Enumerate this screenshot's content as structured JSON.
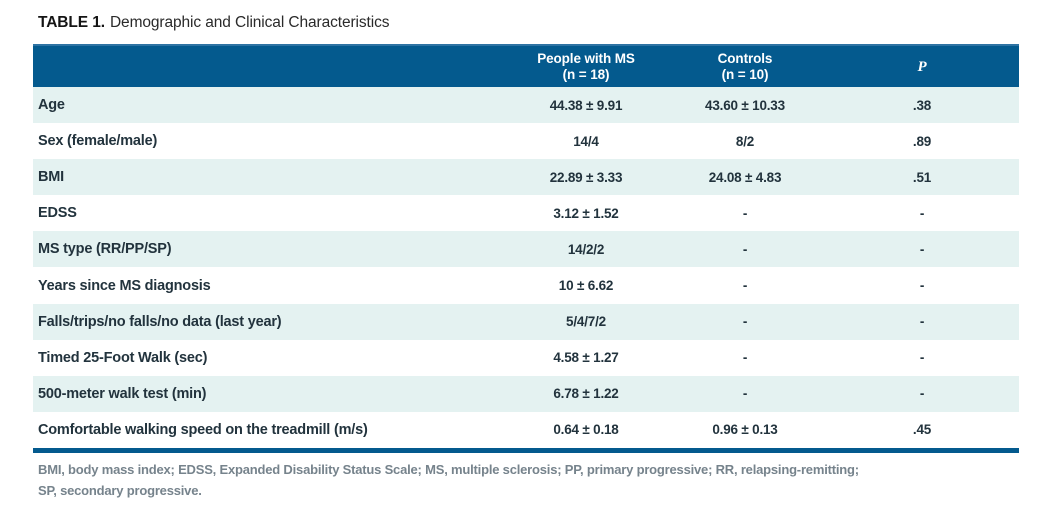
{
  "page": {
    "title_label": "TABLE 1.",
    "title_text": "Demographic and Clinical Characteristics"
  },
  "table": {
    "header": {
      "ms_label": "People with MS",
      "ms_sublabel": "(n = 18)",
      "controls_label": "Controls",
      "controls_sublabel": "(n = 10)",
      "p_label": "P"
    },
    "rows": [
      {
        "label": "Age",
        "ms": "44.38 ± 9.91",
        "controls": "43.60 ± 10.33",
        "p": ".38"
      },
      {
        "label": "Sex (female/male)",
        "ms": "14/4",
        "controls": "8/2",
        "p": ".89"
      },
      {
        "label": "BMI",
        "ms": "22.89 ± 3.33",
        "controls": "24.08 ± 4.83",
        "p": ".51"
      },
      {
        "label": "EDSS",
        "ms": "3.12 ± 1.52",
        "controls": "-",
        "p": "-"
      },
      {
        "label": "MS type (RR/PP/SP)",
        "ms": "14/2/2",
        "controls": "-",
        "p": "-"
      },
      {
        "label": "Years since MS diagnosis",
        "ms": "10 ± 6.62",
        "controls": "-",
        "p": "-"
      },
      {
        "label": "Falls/trips/no falls/no data (last year)",
        "ms": "5/4/7/2",
        "controls": "-",
        "p": "-"
      },
      {
        "label": "Timed 25-Foot Walk (sec)",
        "ms": "4.58 ± 1.27",
        "controls": "-",
        "p": "-"
      },
      {
        "label": "500-meter walk test (min)",
        "ms": "6.78 ± 1.22",
        "controls": "-",
        "p": "-"
      },
      {
        "label": "Comfortable walking speed on the treadmill (m/s)",
        "ms": "0.64 ± 0.18",
        "controls": "0.96 ± 0.13",
        "p": ".45"
      }
    ]
  },
  "footnote": {
    "line1": "BMI, body mass index; EDSS, Expanded Disability Status Scale; MS, multiple sclerosis; PP, primary progressive; RR, relapsing-remitting;",
    "line2": "SP, secondary progressive."
  },
  "colors": {
    "header_bg": "#045a8e",
    "alt_row_bg": "#e4f2f1",
    "body_text": "#22333d",
    "footnote_text": "#76838c"
  }
}
